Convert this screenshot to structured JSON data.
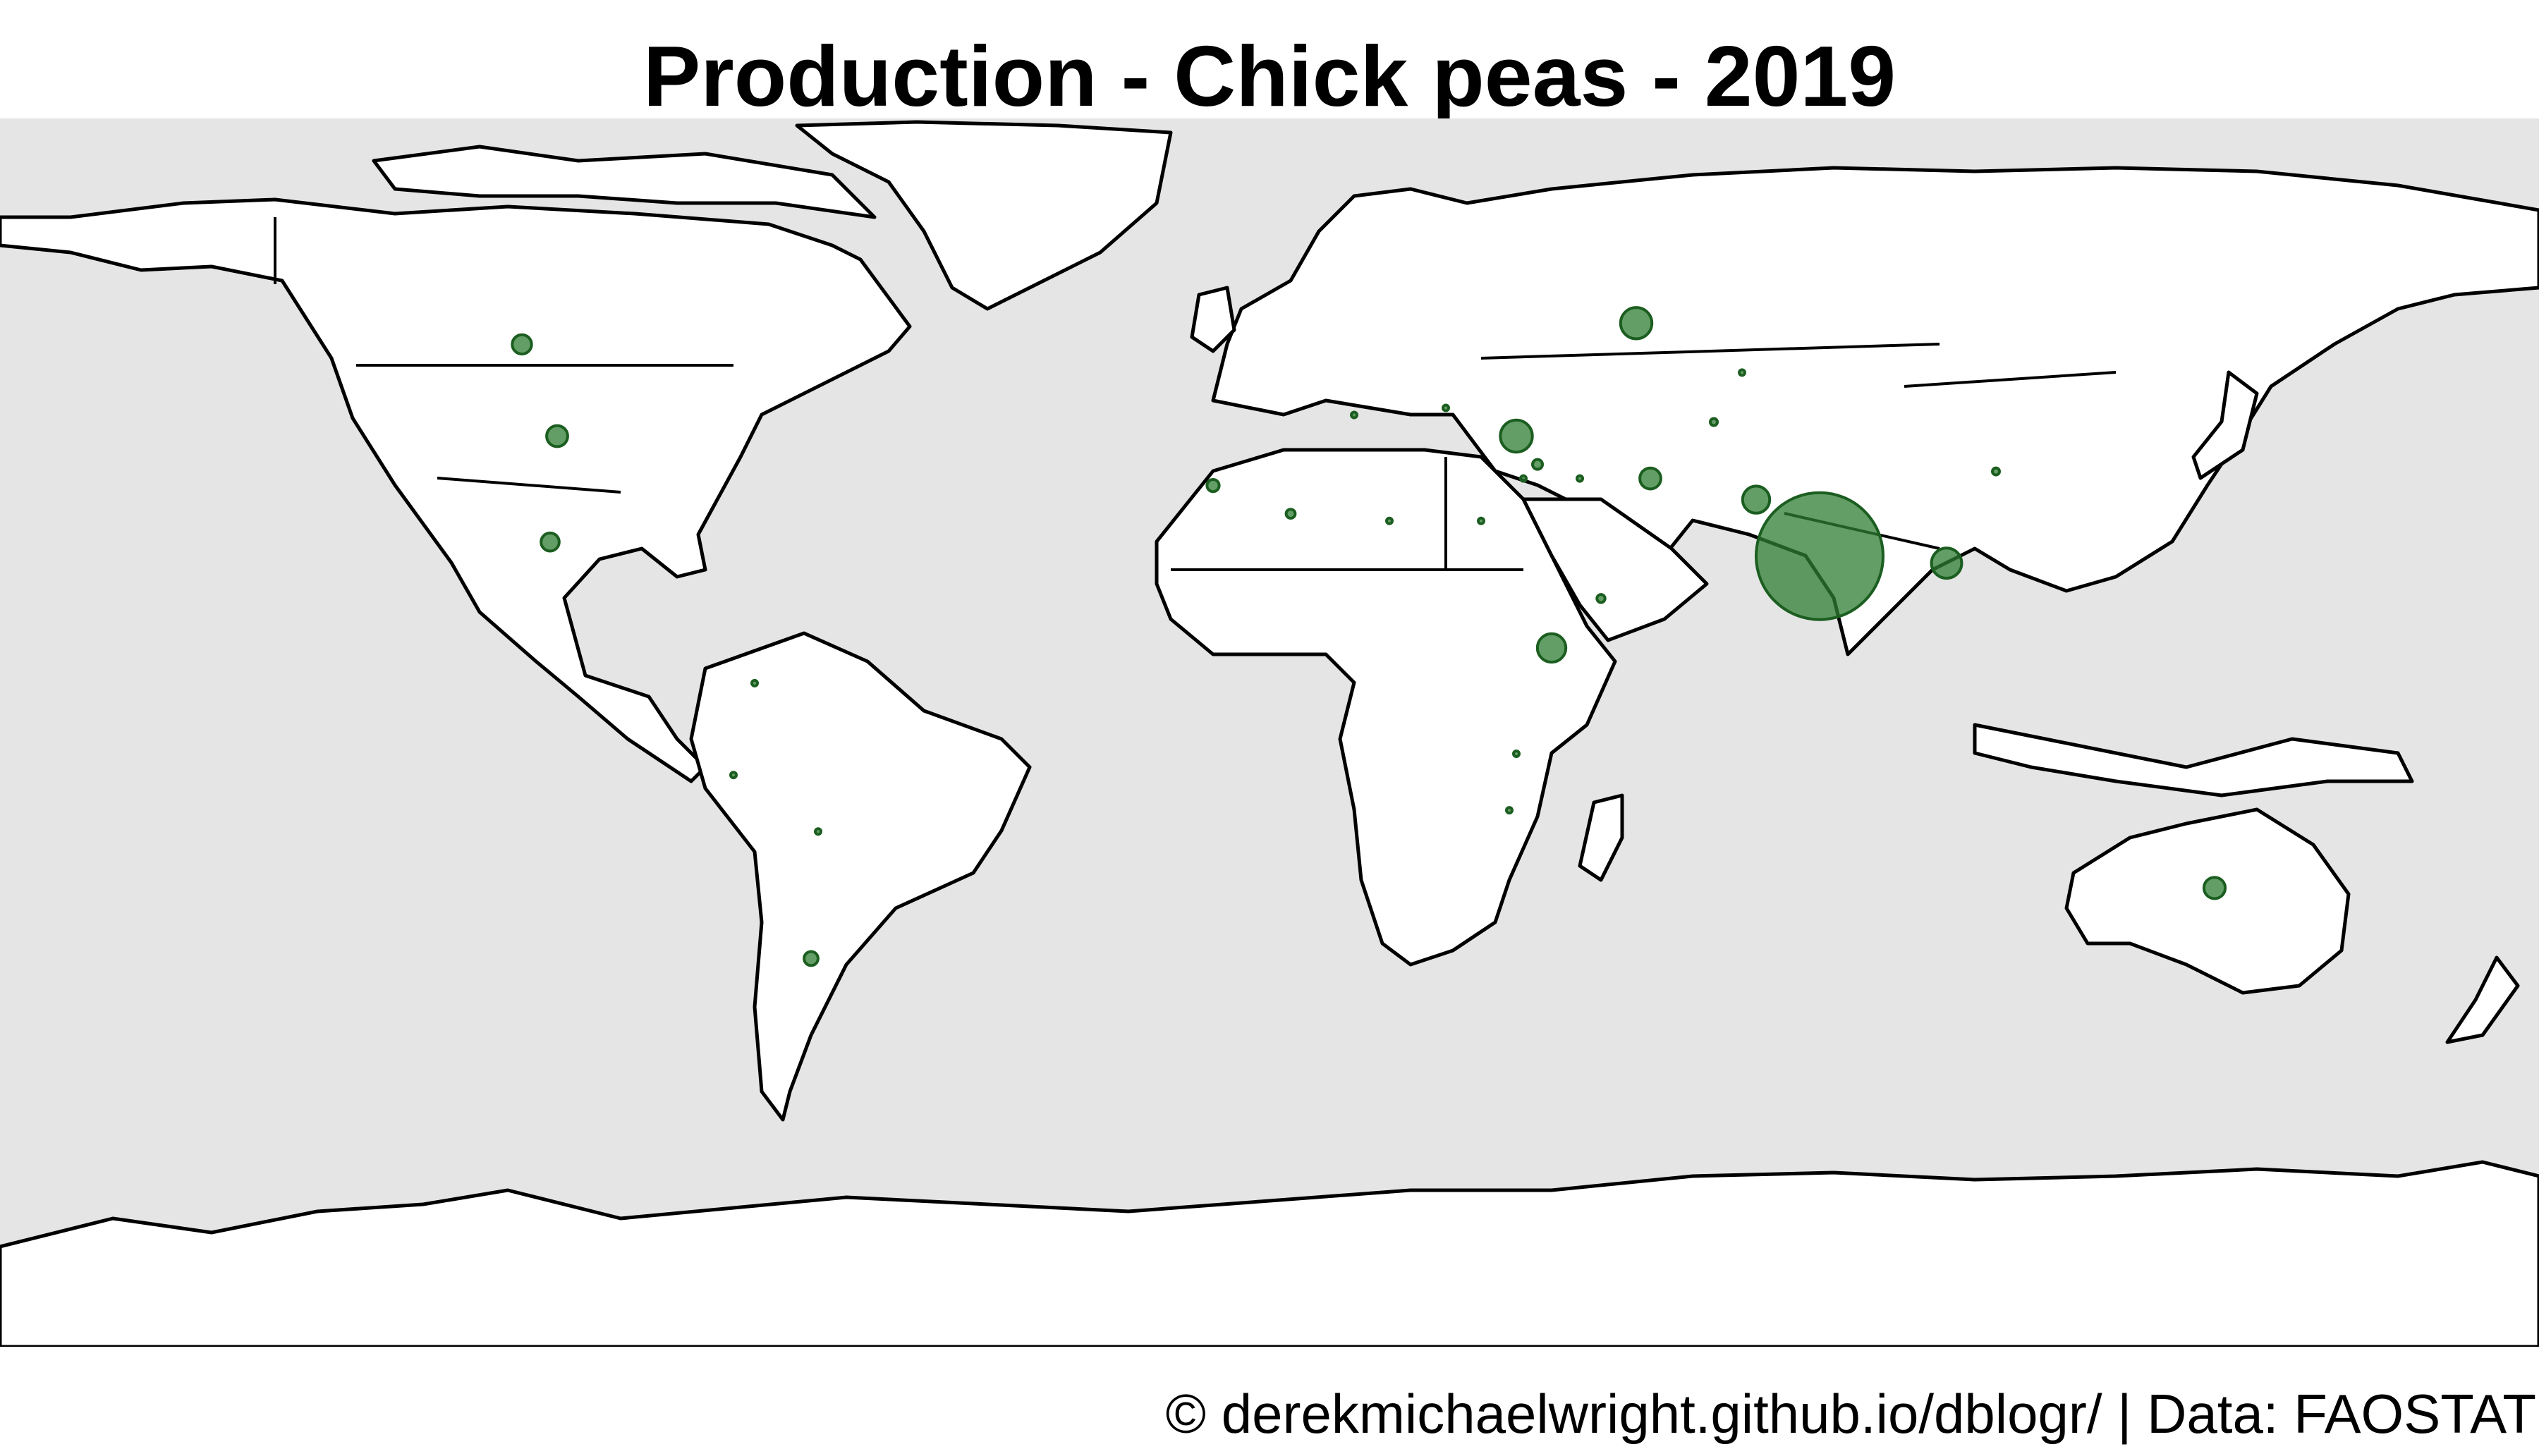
{
  "title": "Production - Chick peas - 2019",
  "caption": "© derekmichaelwright.github.io/dblogr/ | Data: FAOSTAT",
  "colors": {
    "ocean": "#e5e5e5",
    "land": "#ffffff",
    "outline": "#000000",
    "bubble": "#2e7d32"
  },
  "chart_data": {
    "type": "scatter",
    "projection": "equirectangular",
    "xlim": [
      -180,
      180
    ],
    "ylim": [
      -90,
      84
    ],
    "grid": false,
    "legend": "none",
    "bubbles": [
      {
        "country": "India",
        "lon": 78,
        "lat": 22,
        "size": 9.9
      },
      {
        "country": "Turkey",
        "lon": 35,
        "lat": 39,
        "size": 0.63
      },
      {
        "country": "Russia",
        "lon": 52,
        "lat": 55,
        "size": 0.6
      },
      {
        "country": "Myanmar",
        "lon": 96,
        "lat": 21,
        "size": 0.56
      },
      {
        "country": "Ethiopia",
        "lon": 40,
        "lat": 9,
        "size": 0.5
      },
      {
        "country": "Pakistan",
        "lon": 69,
        "lat": 30,
        "size": 0.45
      },
      {
        "country": "Australia",
        "lon": 134,
        "lat": -25,
        "size": 0.28
      },
      {
        "country": "Iran",
        "lon": 54,
        "lat": 33,
        "size": 0.27
      },
      {
        "country": "United States",
        "lon": -101,
        "lat": 39,
        "size": 0.27
      },
      {
        "country": "Canada",
        "lon": -106,
        "lat": 52,
        "size": 0.23
      },
      {
        "country": "Mexico",
        "lon": -102,
        "lat": 24,
        "size": 0.2
      },
      {
        "country": "Argentina",
        "lon": -65,
        "lat": -35,
        "size": 0.12
      },
      {
        "country": "Morocco",
        "lon": -8,
        "lat": 32,
        "size": 0.09
      },
      {
        "country": "Algeria",
        "lon": 3,
        "lat": 28,
        "size": 0.05
      },
      {
        "country": "Syria",
        "lon": 38,
        "lat": 35,
        "size": 0.06
      },
      {
        "country": "Yemen",
        "lon": 47,
        "lat": 16,
        "size": 0.04
      },
      {
        "country": "China",
        "lon": 103,
        "lat": 34,
        "size": 0.03
      },
      {
        "country": "Uzbekistan",
        "lon": 63,
        "lat": 41,
        "size": 0.03
      },
      {
        "country": "Kazakhstan",
        "lon": 67,
        "lat": 48,
        "size": 0.02
      },
      {
        "country": "Egypt",
        "lon": 30,
        "lat": 27,
        "size": 0.02
      },
      {
        "country": "Libya",
        "lon": 17,
        "lat": 27,
        "size": 0.01
      },
      {
        "country": "Tanzania",
        "lon": 35,
        "lat": -6,
        "size": 0.02
      },
      {
        "country": "Malawi",
        "lon": 34,
        "lat": -14,
        "size": 0.01
      },
      {
        "country": "Colombia",
        "lon": -73,
        "lat": 4,
        "size": 0.01
      },
      {
        "country": "Peru",
        "lon": -76,
        "lat": -9,
        "size": 0.01
      },
      {
        "country": "Bolivia",
        "lon": -64,
        "lat": -17,
        "size": 0.01
      },
      {
        "country": "Iraq",
        "lon": 44,
        "lat": 33,
        "size": 0.01
      },
      {
        "country": "Bulgaria",
        "lon": 25,
        "lat": 43,
        "size": 0.01
      },
      {
        "country": "Italy",
        "lon": 12,
        "lat": 42,
        "size": 0.01
      },
      {
        "country": "Lebanon",
        "lon": 36,
        "lat": 33,
        "size": 0.01
      }
    ]
  }
}
